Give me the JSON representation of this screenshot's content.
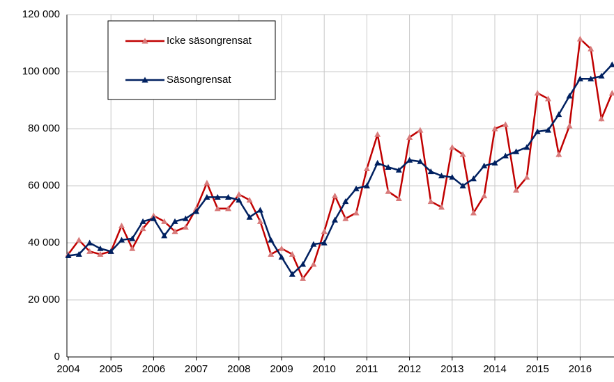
{
  "chart_data": {
    "type": "line",
    "categories": [
      "2004",
      null,
      null,
      null,
      "2005",
      null,
      null,
      null,
      "2006",
      null,
      null,
      null,
      "2007",
      null,
      null,
      null,
      "2008",
      null,
      null,
      null,
      "2009",
      null,
      null,
      null,
      "2010",
      null,
      null,
      null,
      "2011",
      null,
      null,
      null,
      "2012",
      null,
      null,
      null,
      "2013",
      null,
      null,
      null,
      "2014",
      null,
      null,
      null,
      "2015",
      null,
      null,
      null,
      "2016",
      null,
      null,
      null
    ],
    "series": [
      {
        "name": "Icke säsongrensat",
        "color": "#c00000",
        "marker_color": "#d87a7a",
        "values": [
          36000,
          41000,
          37000,
          36000,
          37000,
          46000,
          38000,
          45000,
          49500,
          47500,
          44000,
          45500,
          52000,
          61000,
          52000,
          52000,
          57000,
          55000,
          47500,
          36000,
          38000,
          36000,
          27500,
          32500,
          44000,
          56500,
          48500,
          50500,
          66000,
          78000,
          58000,
          55500,
          77000,
          79500,
          54500,
          52500,
          73500,
          71000,
          50500,
          56500,
          80000,
          81500,
          58500,
          63000,
          92500,
          90500,
          71000,
          81000,
          111500,
          108000,
          83500,
          92500
        ]
      },
      {
        "name": "Säsongrensat",
        "color": "#002060",
        "marker_color": "#002060",
        "values": [
          35500,
          36000,
          40000,
          38000,
          37000,
          41000,
          41500,
          47500,
          48500,
          42500,
          47500,
          48500,
          51000,
          56000,
          56000,
          56000,
          55000,
          49000,
          51500,
          41000,
          35000,
          29000,
          32500,
          39500,
          40000,
          48000,
          54500,
          59000,
          60000,
          68000,
          66500,
          65500,
          69000,
          68500,
          65000,
          63500,
          63000,
          60000,
          62500,
          67000,
          68000,
          70500,
          72000,
          73500,
          79000,
          79500,
          85000,
          91500,
          97500,
          97500,
          98500,
          102500
        ]
      }
    ],
    "ylim": [
      0,
      120000
    ],
    "yticks": [
      0,
      {
        "value": 20000,
        "label": "20 000"
      },
      {
        "value": 40000,
        "label": "40 000"
      },
      {
        "value": 60000,
        "label": "60 000"
      },
      {
        "value": 80000,
        "label": "80 000"
      },
      {
        "value": 100000,
        "label": "100 000"
      },
      {
        "value": 120000,
        "label": "120 000"
      }
    ],
    "grid": true,
    "legend": "upper left"
  }
}
